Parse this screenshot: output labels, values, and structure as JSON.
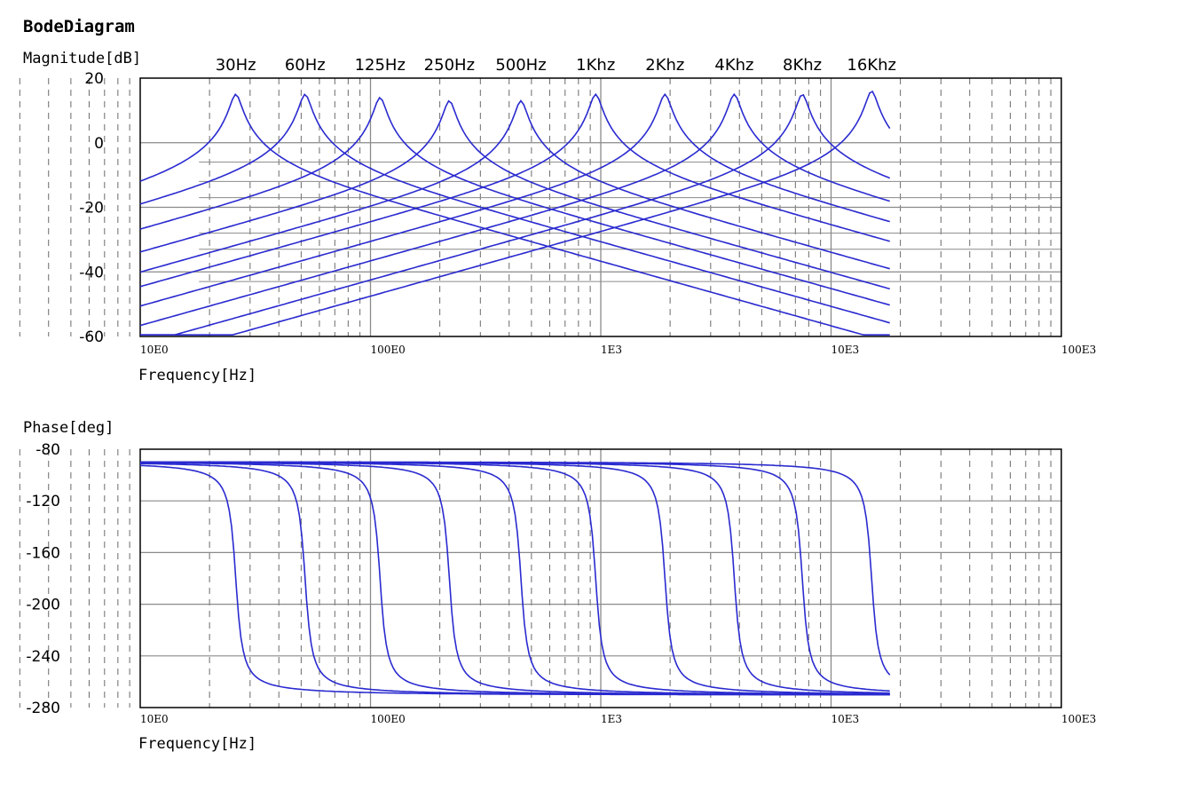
{
  "title": "BodeDiagram",
  "colors": {
    "curve": "#2a2ad0",
    "grid_major": "#8a8a8a",
    "grid_minor": "#6a6a6a",
    "frame": "#000000"
  },
  "chart_data": [
    {
      "type": "line",
      "name": "magnitude",
      "ylabel": "Magnitude[dB]",
      "xlabel": "Frequency[Hz]",
      "xscale": "log",
      "xlim": [
        10,
        100000
      ],
      "ylim": [
        -60,
        20
      ],
      "yticks": [
        "20",
        "0",
        "-20",
        "-40",
        "-60"
      ],
      "xtick_labels": [
        "10E0",
        "100E0",
        "1E3",
        "10E3",
        "100E3"
      ],
      "band_labels": [
        "30Hz",
        "60Hz",
        "125Hz",
        "250Hz",
        "500Hz",
        "1Khz",
        "2Khz",
        "4Khz",
        "8Khz",
        "16Khz"
      ],
      "series": [
        {
          "name": "30Hz",
          "peak_hz": 26,
          "peak_db": 15
        },
        {
          "name": "60Hz",
          "peak_hz": 52,
          "peak_db": 15
        },
        {
          "name": "125Hz",
          "peak_hz": 110,
          "peak_db": 14
        },
        {
          "name": "250Hz",
          "peak_hz": 220,
          "peak_db": 13
        },
        {
          "name": "500Hz",
          "peak_hz": 450,
          "peak_db": 13
        },
        {
          "name": "1Khz",
          "peak_hz": 950,
          "peak_db": 15
        },
        {
          "name": "2Khz",
          "peak_hz": 1900,
          "peak_db": 15
        },
        {
          "name": "4Khz",
          "peak_hz": 3800,
          "peak_db": 15
        },
        {
          "name": "8Khz",
          "peak_hz": 7500,
          "peak_db": 15
        },
        {
          "name": "16Khz",
          "peak_hz": 15000,
          "peak_db": 16
        }
      ],
      "curve_range_hz": [
        10,
        18000
      ],
      "slope_db_per_decade": 20
    },
    {
      "type": "line",
      "name": "phase",
      "ylabel": "Phase[deg]",
      "xlabel": "Frequency[Hz]",
      "xscale": "log",
      "xlim": [
        10,
        100000
      ],
      "ylim": [
        -280,
        -80
      ],
      "yticks": [
        "-80",
        "-120",
        "-160",
        "-200",
        "-240",
        "-280"
      ],
      "ytick_values": [
        -80,
        -120,
        -160,
        -200,
        -240,
        -280
      ],
      "xtick_labels": [
        "10E0",
        "100E0",
        "1E3",
        "10E3",
        "100E3"
      ],
      "phase_start_deg": -90,
      "phase_end_deg": -270,
      "transition_hz": [
        26,
        52,
        110,
        220,
        450,
        950,
        1900,
        3800,
        7500,
        15000
      ],
      "curve_range_hz": [
        10,
        18000
      ]
    }
  ]
}
